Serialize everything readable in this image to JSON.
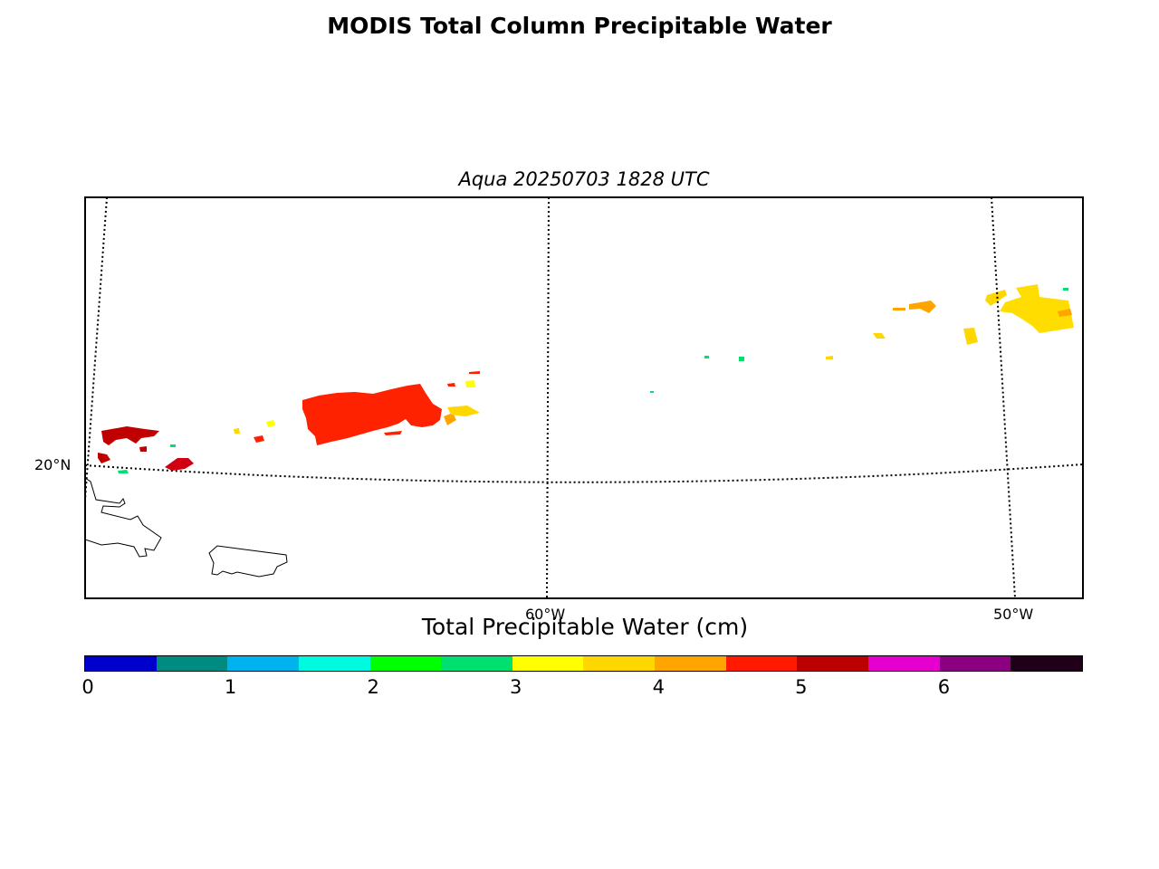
{
  "title": "MODIS Total Column Precipitable Water",
  "subtitle": "Aqua 20250703 1828 UTC",
  "map": {
    "lat_labels": [
      "20°N"
    ],
    "lon_labels": [
      "60°W",
      "50°W"
    ]
  },
  "colorbar": {
    "title": "Total Precipitable Water (cm)",
    "colors": [
      "#0000cc",
      "#008b80",
      "#00b2ee",
      "#00fae0",
      "#00ff00",
      "#00e070",
      "#ffff00",
      "#ffd700",
      "#ffa500",
      "#ff1a00",
      "#bb0000",
      "#e600d0",
      "#8b0080",
      "#200018"
    ],
    "ticks": [
      "0",
      "1",
      "2",
      "3",
      "4",
      "5",
      "6"
    ]
  }
}
